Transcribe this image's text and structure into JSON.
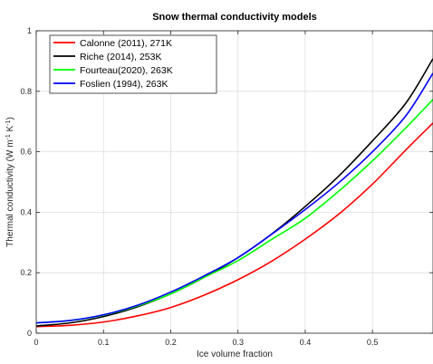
{
  "chart_data": {
    "type": "line",
    "title": "Snow thermal conductivity models",
    "xlabel": "Ice volume fraction",
    "ylabel_main": "Thermal conductivity (W m",
    "ylabel_sup1": "-1",
    "ylabel_mid": " K",
    "ylabel_sup2": "-1",
    "ylabel_end": ")",
    "xlim": [
      0,
      0.59
    ],
    "ylim": [
      0,
      1
    ],
    "xticks": [
      0,
      0.1,
      0.2,
      0.3,
      0.4,
      0.5
    ],
    "xtick_labels": [
      "0",
      "0.1",
      "0.2",
      "0.3",
      "0.4",
      "0.5"
    ],
    "yticks": [
      0,
      0.2,
      0.4,
      0.6,
      0.8,
      1
    ],
    "ytick_labels": [
      "0",
      "0.2",
      "0.4",
      "0.6",
      "0.8",
      "1"
    ],
    "grid": true,
    "legend_position": "top-left",
    "series": [
      {
        "name": "Calonne (2011), 271K",
        "color": "#ff0000",
        "x": [
          0,
          0.05,
          0.1,
          0.15,
          0.2,
          0.25,
          0.3,
          0.35,
          0.4,
          0.45,
          0.5,
          0.55,
          0.59
        ],
        "y": [
          0.022,
          0.026,
          0.037,
          0.057,
          0.085,
          0.126,
          0.177,
          0.238,
          0.311,
          0.394,
          0.493,
          0.607,
          0.695
        ]
      },
      {
        "name": "Riche (2014), 253K",
        "color": "#000000",
        "x": [
          0,
          0.05,
          0.1,
          0.15,
          0.2,
          0.25,
          0.3,
          0.35,
          0.4,
          0.45,
          0.5,
          0.55,
          0.59
        ],
        "y": [
          0.024,
          0.034,
          0.055,
          0.087,
          0.13,
          0.185,
          0.25,
          0.328,
          0.419,
          0.52,
          0.636,
          0.762,
          0.908
        ]
      },
      {
        "name": "Fourteau(2020), 263K",
        "color": "#00ff00",
        "x": [
          0,
          0.05,
          0.1,
          0.15,
          0.2,
          0.25,
          0.3,
          0.35,
          0.4,
          0.45,
          0.5,
          0.55,
          0.59
        ],
        "y": [
          0.034,
          0.042,
          0.06,
          0.09,
          0.13,
          0.185,
          0.24,
          0.31,
          0.38,
          0.47,
          0.57,
          0.68,
          0.773
        ]
      },
      {
        "name": "Foslien (1994), 263K",
        "color": "#0000ff",
        "x": [
          0,
          0.05,
          0.1,
          0.15,
          0.2,
          0.25,
          0.3,
          0.35,
          0.4,
          0.45,
          0.5,
          0.55,
          0.59
        ],
        "y": [
          0.034,
          0.042,
          0.061,
          0.092,
          0.136,
          0.19,
          0.25,
          0.327,
          0.409,
          0.498,
          0.6,
          0.72,
          0.86
        ]
      }
    ]
  }
}
